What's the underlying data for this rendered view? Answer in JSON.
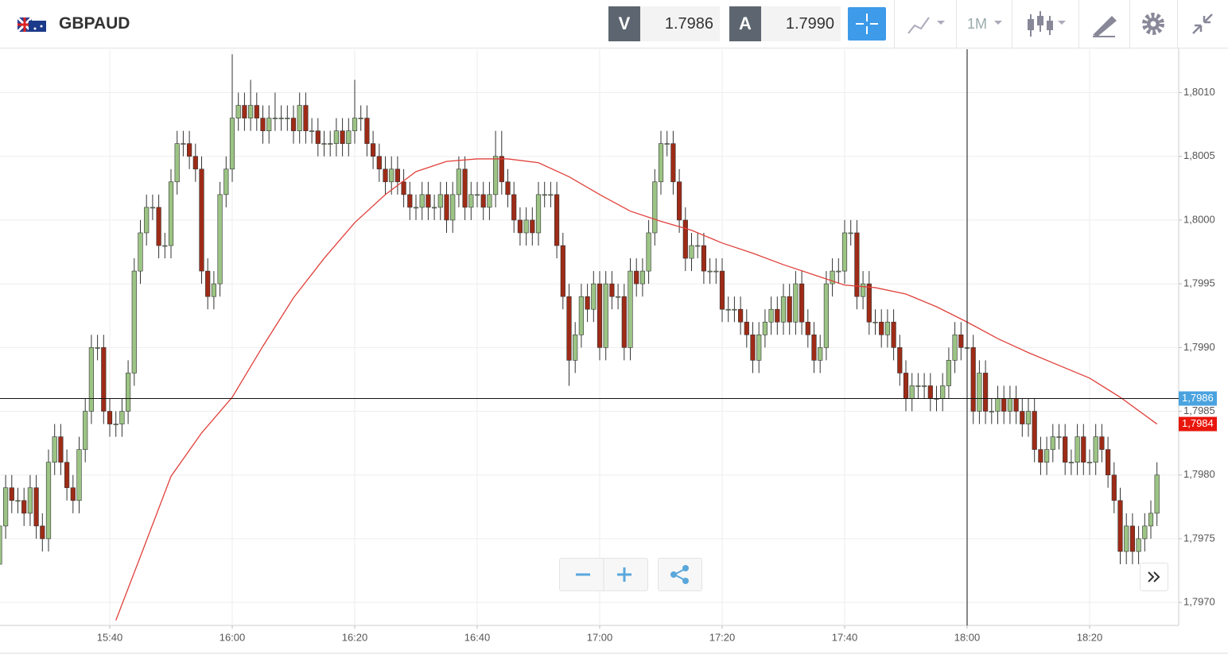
{
  "toolbar": {
    "symbol": "GBPAUD",
    "bid_label": "V",
    "bid": "1.7986",
    "ask_label": "A",
    "ask": "1.7990",
    "timeframe": "1M"
  },
  "chart_data": {
    "type": "candlestick",
    "x": [
      "15:22",
      "15:23",
      "15:24",
      "15:25",
      "15:26",
      "15:27",
      "15:28",
      "15:29",
      "15:30",
      "15:31",
      "15:32",
      "15:33",
      "15:34",
      "15:35",
      "15:36",
      "15:37",
      "15:38",
      "15:39",
      "15:40",
      "15:41",
      "15:42",
      "15:43",
      "15:44",
      "15:45",
      "15:46",
      "15:47",
      "15:48",
      "15:49",
      "15:50",
      "15:51",
      "15:52",
      "15:53",
      "15:54",
      "15:55",
      "15:56",
      "15:57",
      "15:58",
      "15:59",
      "16:00",
      "16:01",
      "16:02",
      "16:03",
      "16:04",
      "16:05",
      "16:06",
      "16:07",
      "16:08",
      "16:09",
      "16:10",
      "16:11",
      "16:12",
      "16:13",
      "16:14",
      "16:15",
      "16:16",
      "16:17",
      "16:18",
      "16:19",
      "16:20",
      "16:21",
      "16:22",
      "16:23",
      "16:24",
      "16:25",
      "16:26",
      "16:27",
      "16:28",
      "16:29",
      "16:30",
      "16:31",
      "16:32",
      "16:33",
      "16:34",
      "16:35",
      "16:36",
      "16:37",
      "16:38",
      "16:39",
      "16:40",
      "16:41",
      "16:42",
      "16:43",
      "16:44",
      "16:45",
      "16:46",
      "16:47",
      "16:48",
      "16:49",
      "16:50",
      "16:51",
      "16:52",
      "16:53",
      "16:54",
      "16:55",
      "16:56",
      "16:57",
      "16:58",
      "16:59",
      "17:00",
      "17:01",
      "17:02",
      "17:03",
      "17:04",
      "17:05",
      "17:06",
      "17:07",
      "17:08",
      "17:09",
      "17:10",
      "17:11",
      "17:12",
      "17:13",
      "17:14",
      "17:15",
      "17:16",
      "17:17",
      "17:18",
      "17:19",
      "17:20",
      "17:21",
      "17:22",
      "17:23",
      "17:24",
      "17:25",
      "17:26",
      "17:27",
      "17:28",
      "17:29",
      "17:30",
      "17:31",
      "17:32",
      "17:33",
      "17:34",
      "17:35",
      "17:36",
      "17:37",
      "17:38",
      "17:39",
      "17:40",
      "17:41",
      "17:42",
      "17:43",
      "17:44",
      "17:45",
      "17:46",
      "17:47",
      "17:48",
      "17:49",
      "17:50",
      "17:51",
      "17:52",
      "17:53",
      "17:54",
      "17:55",
      "17:56",
      "17:57",
      "17:58",
      "17:59",
      "18:00",
      "18:01",
      "18:02",
      "18:03",
      "18:04",
      "18:05",
      "18:06",
      "18:07",
      "18:08",
      "18:09",
      "18:10",
      "18:11",
      "18:12",
      "18:13",
      "18:14",
      "18:15",
      "18:16",
      "18:17",
      "18:18",
      "18:19",
      "18:20",
      "18:21",
      "18:22",
      "18:23",
      "18:24",
      "18:25",
      "18:26",
      "18:27",
      "18:28",
      "18:29",
      "18:30",
      "18:31"
    ],
    "open": [
      1.7973,
      1.7976,
      1.7979,
      1.7978,
      1.7978,
      1.7977,
      1.7979,
      1.7976,
      1.7975,
      1.7981,
      1.7983,
      1.7981,
      1.7979,
      1.7978,
      1.7982,
      1.7985,
      1.799,
      1.799,
      1.7985,
      1.7984,
      1.7984,
      1.7985,
      1.7988,
      1.7996,
      1.7999,
      1.8001,
      1.8001,
      1.7998,
      1.7998,
      1.8003,
      1.8006,
      1.8006,
      1.8005,
      1.8004,
      1.7996,
      1.7994,
      1.7995,
      1.8002,
      1.8004,
      1.8008,
      1.8009,
      1.8008,
      1.8009,
      1.8008,
      1.8007,
      1.8008,
      1.8008,
      1.8008,
      1.8008,
      1.8007,
      1.8009,
      1.8007,
      1.8007,
      1.8006,
      1.8006,
      1.8006,
      1.8007,
      1.8006,
      1.8007,
      1.8008,
      1.8008,
      1.8006,
      1.8005,
      1.8004,
      1.8003,
      1.8004,
      1.8003,
      1.8002,
      1.8001,
      1.8001,
      1.8002,
      1.8001,
      1.8001,
      1.8002,
      1.8,
      1.8002,
      1.8004,
      1.8001,
      1.8002,
      1.8002,
      1.8001,
      1.8002,
      1.8005,
      1.8003,
      1.8002,
      1.8,
      1.7999,
      1.8,
      1.7999,
      1.8002,
      1.8002,
      1.8002,
      1.7998,
      1.7994,
      1.7989,
      1.7991,
      1.7994,
      1.7993,
      1.7995,
      1.799,
      1.7995,
      1.7994,
      1.7994,
      1.799,
      1.7996,
      1.7995,
      1.7996,
      1.7999,
      1.8003,
      1.8006,
      1.8006,
      1.8003,
      1.8,
      1.7997,
      1.7998,
      1.7998,
      1.7996,
      1.7996,
      1.7996,
      1.7993,
      1.7993,
      1.7993,
      1.7992,
      1.7991,
      1.7989,
      1.7991,
      1.7992,
      1.7993,
      1.7992,
      1.7994,
      1.7992,
      1.7995,
      1.7992,
      1.7991,
      1.7989,
      1.799,
      1.7995,
      1.7996,
      1.7996,
      1.7999,
      1.7999,
      1.7994,
      1.7995,
      1.7992,
      1.7992,
      1.7991,
      1.7992,
      1.799,
      1.7988,
      1.7986,
      1.7987,
      1.7987,
      1.7987,
      1.7986,
      1.7986,
      1.7987,
      1.7989,
      1.7991,
      1.799,
      1.799,
      1.7985,
      1.7988,
      1.7985,
      1.7985,
      1.7986,
      1.7985,
      1.7986,
      1.7985,
      1.7984,
      1.7985,
      1.7982,
      1.7981,
      1.7982,
      1.7983,
      1.7983,
      1.7981,
      1.7981,
      1.7983,
      1.7981,
      1.7981,
      1.7983,
      1.7982,
      1.798,
      1.7978,
      1.7974,
      1.7976,
      1.7974,
      1.7975,
      1.7976,
      1.7977
    ],
    "high": [
      1.7977,
      1.798,
      1.798,
      1.7979,
      1.7979,
      1.798,
      1.798,
      1.7977,
      1.7982,
      1.7984,
      1.7984,
      1.7982,
      1.798,
      1.7983,
      1.7986,
      1.7991,
      1.7991,
      1.7991,
      1.7986,
      1.7985,
      1.7986,
      1.7989,
      1.7997,
      1.8,
      1.8002,
      1.8002,
      1.8002,
      1.7999,
      1.8004,
      1.8007,
      1.8007,
      1.8007,
      1.8006,
      1.8005,
      1.7997,
      1.7996,
      1.8003,
      1.8005,
      1.8013,
      1.801,
      1.801,
      1.8011,
      1.801,
      1.8009,
      1.8009,
      1.801,
      1.8009,
      1.8009,
      1.8009,
      1.801,
      1.801,
      1.8008,
      1.8008,
      1.8007,
      1.8007,
      1.8008,
      1.8008,
      1.8008,
      1.8011,
      1.8009,
      1.8009,
      1.8007,
      1.8006,
      1.8005,
      1.8005,
      1.8005,
      1.8004,
      1.8003,
      1.8002,
      1.8003,
      1.8003,
      1.8002,
      1.8003,
      1.8003,
      1.8003,
      1.8005,
      1.8005,
      1.8003,
      1.8003,
      1.8003,
      1.8003,
      1.8007,
      1.8007,
      1.8004,
      1.8003,
      1.8001,
      1.8001,
      1.8001,
      1.8003,
      1.8003,
      1.8003,
      1.8003,
      1.7999,
      1.7995,
      1.7992,
      1.7995,
      1.7995,
      1.7996,
      1.7996,
      1.7996,
      1.7996,
      1.7995,
      1.7995,
      1.7997,
      1.7997,
      1.7997,
      1.8,
      1.8004,
      1.8007,
      1.8007,
      1.8007,
      1.8004,
      1.8001,
      1.7999,
      1.7999,
      1.7999,
      1.7997,
      1.7997,
      1.7997,
      1.7994,
      1.7994,
      1.7994,
      1.7993,
      1.7992,
      1.7992,
      1.7993,
      1.7994,
      1.7994,
      1.7995,
      1.7995,
      1.7996,
      1.7996,
      1.7993,
      1.7992,
      1.7991,
      1.7996,
      1.7997,
      1.7997,
      1.8,
      1.8,
      1.8,
      1.7996,
      1.7996,
      1.7993,
      1.7993,
      1.7993,
      1.7993,
      1.7991,
      1.7989,
      1.7988,
      1.7988,
      1.7988,
      1.7988,
      1.7987,
      1.7988,
      1.799,
      1.7992,
      1.7992,
      1.7991,
      1.7991,
      1.7989,
      1.7989,
      1.7986,
      1.7987,
      1.7987,
      1.7987,
      1.7987,
      1.7986,
      1.7986,
      1.7986,
      1.7983,
      1.7983,
      1.7984,
      1.7984,
      1.7984,
      1.7982,
      1.7984,
      1.7984,
      1.7982,
      1.7984,
      1.7984,
      1.7983,
      1.7981,
      1.7979,
      1.7977,
      1.7977,
      1.7976,
      1.7977,
      1.7978,
      1.7981
    ],
    "low": [
      1.7972,
      1.7975,
      1.7977,
      1.7977,
      1.7976,
      1.7976,
      1.7975,
      1.7974,
      1.7974,
      1.798,
      1.798,
      1.7978,
      1.7977,
      1.7977,
      1.7981,
      1.7984,
      1.7989,
      1.7984,
      1.7983,
      1.7983,
      1.7983,
      1.7984,
      1.7987,
      1.7995,
      1.7998,
      1.8,
      1.7997,
      1.7997,
      1.7997,
      1.8002,
      1.8005,
      1.8004,
      1.8003,
      1.7995,
      1.7993,
      1.7993,
      1.7994,
      1.8001,
      1.8003,
      1.8007,
      1.8007,
      1.8007,
      1.8007,
      1.8006,
      1.8006,
      1.8007,
      1.8007,
      1.8007,
      1.8006,
      1.8006,
      1.8006,
      1.8006,
      1.8005,
      1.8005,
      1.8005,
      1.8005,
      1.8005,
      1.8005,
      1.8006,
      1.8007,
      1.8005,
      1.8004,
      1.8003,
      1.8002,
      1.8002,
      1.8002,
      1.8001,
      1.8,
      1.8,
      1.8,
      1.8,
      1.8,
      1.8,
      1.7999,
      1.7999,
      1.8001,
      1.8,
      1.8,
      1.8001,
      1.8,
      1.8,
      1.8001,
      1.8002,
      1.8001,
      1.7999,
      1.7998,
      1.7998,
      1.7998,
      1.7998,
      1.8001,
      1.8001,
      1.7997,
      1.7993,
      1.7987,
      1.7988,
      1.799,
      1.7992,
      1.7992,
      1.7989,
      1.7989,
      1.7993,
      1.7993,
      1.7989,
      1.7989,
      1.7994,
      1.7994,
      1.7995,
      1.7998,
      1.8002,
      1.8005,
      1.8002,
      1.7999,
      1.7996,
      1.7996,
      1.7997,
      1.7995,
      1.7995,
      1.7995,
      1.7992,
      1.7992,
      1.7992,
      1.7991,
      1.799,
      1.7988,
      1.7988,
      1.799,
      1.7991,
      1.7991,
      1.7991,
      1.7991,
      1.7991,
      1.7991,
      1.799,
      1.7988,
      1.7988,
      1.7989,
      1.7994,
      1.7995,
      1.7995,
      1.7998,
      1.7993,
      1.7993,
      1.7991,
      1.7991,
      1.799,
      1.799,
      1.7989,
      1.7987,
      1.7985,
      1.7985,
      1.7986,
      1.7986,
      1.7985,
      1.7985,
      1.7985,
      1.7986,
      1.7988,
      1.7989,
      1.7989,
      1.7984,
      1.7984,
      1.7984,
      1.7984,
      1.7984,
      1.7984,
      1.7984,
      1.7984,
      1.7983,
      1.7983,
      1.7981,
      1.798,
      1.798,
      1.7981,
      1.7982,
      1.798,
      1.798,
      1.798,
      1.798,
      1.798,
      1.798,
      1.7981,
      1.7979,
      1.7977,
      1.7973,
      1.7973,
      1.7973,
      1.7973,
      1.7974,
      1.7975,
      1.7976
    ],
    "close": [
      1.7976,
      1.7979,
      1.7978,
      1.7978,
      1.7977,
      1.7979,
      1.7976,
      1.7975,
      1.7981,
      1.7983,
      1.7981,
      1.7979,
      1.7978,
      1.7982,
      1.7985,
      1.799,
      1.799,
      1.7985,
      1.7984,
      1.7984,
      1.7985,
      1.7988,
      1.7996,
      1.7999,
      1.8001,
      1.8001,
      1.7998,
      1.7998,
      1.8003,
      1.8006,
      1.8006,
      1.8005,
      1.8004,
      1.7996,
      1.7994,
      1.7995,
      1.8002,
      1.8004,
      1.8008,
      1.8009,
      1.8008,
      1.8009,
      1.8008,
      1.8007,
      1.8008,
      1.8008,
      1.8008,
      1.8008,
      1.8007,
      1.8009,
      1.8007,
      1.8007,
      1.8006,
      1.8006,
      1.8006,
      1.8007,
      1.8006,
      1.8007,
      1.8008,
      1.8008,
      1.8006,
      1.8005,
      1.8004,
      1.8003,
      1.8004,
      1.8003,
      1.8002,
      1.8001,
      1.8001,
      1.8002,
      1.8001,
      1.8001,
      1.8002,
      1.8,
      1.8002,
      1.8004,
      1.8001,
      1.8002,
      1.8002,
      1.8001,
      1.8002,
      1.8005,
      1.8003,
      1.8002,
      1.8,
      1.7999,
      1.8,
      1.7999,
      1.8002,
      1.8002,
      1.8002,
      1.7998,
      1.7994,
      1.7989,
      1.7991,
      1.7994,
      1.7993,
      1.7995,
      1.799,
      1.7995,
      1.7994,
      1.7994,
      1.799,
      1.7996,
      1.7995,
      1.7996,
      1.7999,
      1.8003,
      1.8006,
      1.8006,
      1.8003,
      1.8,
      1.7997,
      1.7998,
      1.7998,
      1.7996,
      1.7996,
      1.7996,
      1.7993,
      1.7993,
      1.7993,
      1.7992,
      1.7991,
      1.7989,
      1.7991,
      1.7992,
      1.7993,
      1.7992,
      1.7994,
      1.7992,
      1.7995,
      1.7992,
      1.7991,
      1.7989,
      1.799,
      1.7995,
      1.7996,
      1.7996,
      1.7999,
      1.7999,
      1.7994,
      1.7995,
      1.7992,
      1.7992,
      1.7991,
      1.7992,
      1.799,
      1.7988,
      1.7986,
      1.7987,
      1.7987,
      1.7987,
      1.7986,
      1.7986,
      1.7987,
      1.7989,
      1.7991,
      1.799,
      1.799,
      1.7985,
      1.7988,
      1.7985,
      1.7985,
      1.7986,
      1.7985,
      1.7986,
      1.7985,
      1.7984,
      1.7985,
      1.7982,
      1.7981,
      1.7982,
      1.7983,
      1.7983,
      1.7981,
      1.7981,
      1.7983,
      1.7981,
      1.7981,
      1.7983,
      1.7982,
      1.798,
      1.7978,
      1.7974,
      1.7976,
      1.7974,
      1.7975,
      1.7976,
      1.7977,
      1.798
    ],
    "up_color": "#9cc485",
    "down_color": "#9e2b17",
    "ylim": [
      1.79682,
      1.80134
    ],
    "yticks": [
      {
        "value": 1.797,
        "label": "1,7970"
      },
      {
        "value": 1.7975,
        "label": "1,7975"
      },
      {
        "value": 1.798,
        "label": "1,7980"
      },
      {
        "value": 1.7985,
        "label": "1,7985"
      },
      {
        "value": 1.799,
        "label": "1,7990"
      },
      {
        "value": 1.7995,
        "label": "1,7995"
      },
      {
        "value": 1.8,
        "label": "1,8000"
      },
      {
        "value": 1.8005,
        "label": "1,8005"
      },
      {
        "value": 1.801,
        "label": "1,8010"
      }
    ],
    "xticks": [
      "15:40",
      "16:00",
      "16:20",
      "16:40",
      "17:00",
      "17:20",
      "17:40",
      "18:00",
      "18:20"
    ],
    "grid": true,
    "moving_average": {
      "color": "#e0403a",
      "x": [
        "15:41",
        "15:45",
        "15:50",
        "15:55",
        "16:00",
        "16:05",
        "16:10",
        "16:15",
        "16:20",
        "16:25",
        "16:30",
        "16:35",
        "16:40",
        "16:45",
        "16:50",
        "16:55",
        "17:00",
        "17:05",
        "17:10",
        "17:15",
        "17:20",
        "17:25",
        "17:30",
        "17:35",
        "17:40",
        "17:45",
        "17:50",
        "17:55",
        "18:00",
        "18:05",
        "18:10",
        "18:15",
        "18:20",
        "18:25",
        "18:31"
      ],
      "values": [
        1.79686,
        1.79736,
        1.79799,
        1.79833,
        1.79861,
        1.79901,
        1.79939,
        1.7997,
        1.79998,
        1.8002,
        1.80038,
        1.80046,
        1.80048,
        1.80048,
        1.80045,
        1.80034,
        1.8002,
        1.80007,
        1.79999,
        1.79992,
        1.79982,
        1.79974,
        1.79965,
        1.79957,
        1.79949,
        1.79947,
        1.79942,
        1.79932,
        1.7992,
        1.79907,
        1.79896,
        1.79886,
        1.79876,
        1.79861,
        1.7984
      ],
      "last_label": {
        "value": 1.7984,
        "label": "1,7984"
      }
    },
    "crosshair": {
      "time": "18:00",
      "price": {
        "value": 1.7986,
        "label": "1,7986"
      }
    }
  }
}
